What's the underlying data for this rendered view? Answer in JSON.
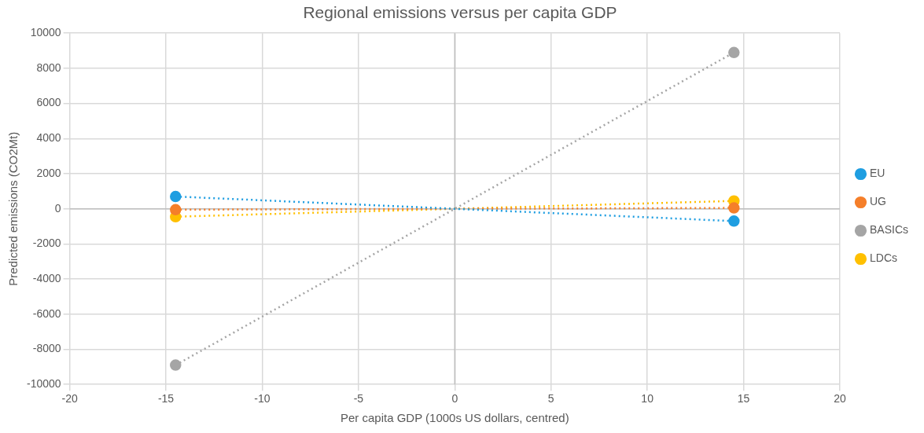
{
  "chart_data": {
    "type": "line",
    "title": "Regional emissions versus per capita GDP",
    "xlabel": "Per capita GDP (1000s US dollars, centred)",
    "ylabel": "Predicted emissions (CO2Mt)",
    "x": [
      -14.5,
      14.5
    ],
    "series": [
      {
        "name": "EU",
        "color": "#1f9ee1",
        "values": [
          700,
          -700
        ]
      },
      {
        "name": "UG",
        "color": "#f57f2a",
        "values": [
          -50,
          50
        ]
      },
      {
        "name": "BASICs",
        "color": "#a5a5a5",
        "values": [
          -8900,
          8900
        ]
      },
      {
        "name": "LDCs",
        "color": "#ffc000",
        "values": [
          -450,
          450
        ]
      }
    ],
    "xlim": [
      -20,
      20
    ],
    "xticks": [
      -20,
      -15,
      -10,
      -5,
      0,
      5,
      10,
      15,
      20
    ],
    "ylim": [
      -10000,
      10000
    ],
    "yticks": [
      -10000,
      -8000,
      -6000,
      -4000,
      -2000,
      0,
      2000,
      4000,
      6000,
      8000,
      10000
    ],
    "grid": true,
    "legend": "right",
    "marker": "circle",
    "line_style": "dotted"
  }
}
